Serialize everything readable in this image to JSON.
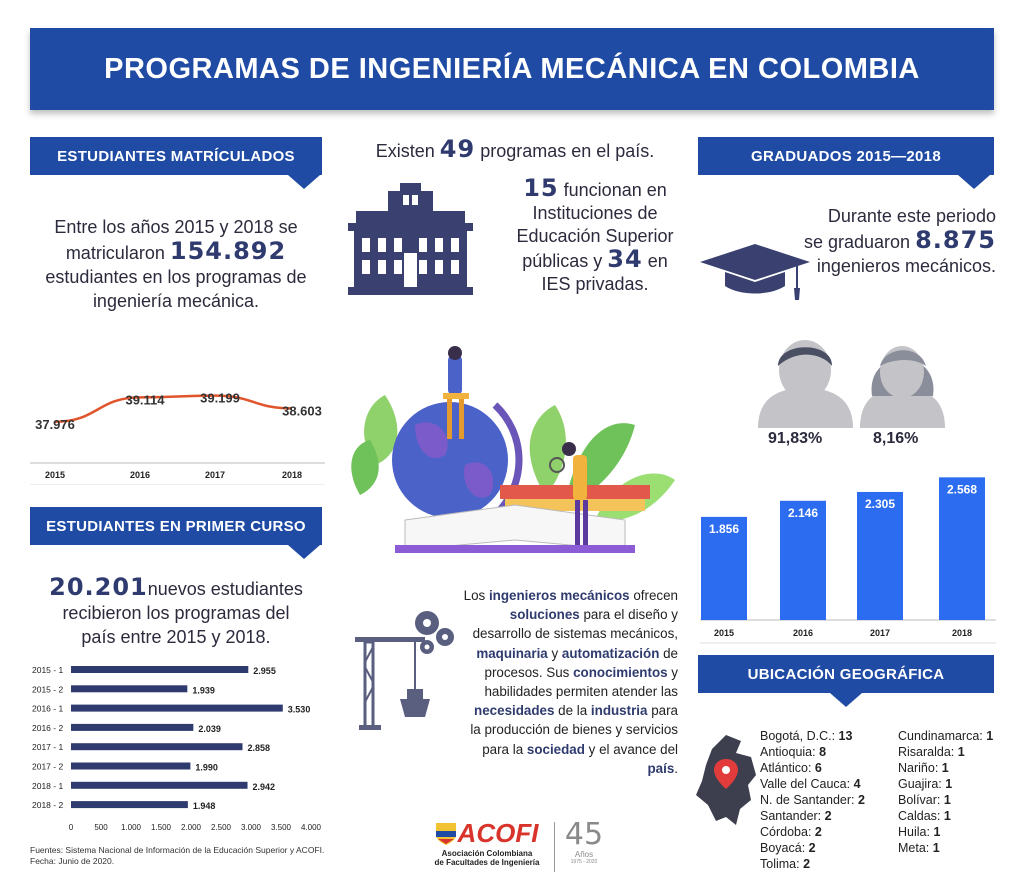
{
  "title": "PROGRAMAS DE INGENIERÍA MECÁNICA EN COLOMBIA",
  "matriculados": {
    "heading": "ESTUDIANTES MATRÍCULADOS",
    "text_a": "Entre los años 2015 y 2018 se",
    "text_b": "matricularon",
    "number": "154.892",
    "text_c": "estudiantes en los programas de",
    "text_d": "ingeniería mecánica.",
    "chart": {
      "years": [
        "2015",
        "2016",
        "2017",
        "2018"
      ],
      "labels": [
        "37.976",
        "39.114",
        "39.199",
        "38.603"
      ],
      "values": [
        37976,
        39114,
        39199,
        38603
      ],
      "line_color": "#e0552b"
    }
  },
  "programas": {
    "line1_a": "Existen",
    "line1_num": "49",
    "line1_b": "programas en el país.",
    "num_public": "15",
    "t1": "funcionan en",
    "t2": "Instituciones de",
    "t3": "Educación Superior",
    "t4": "públicas y",
    "num_private": "34",
    "t5": "en",
    "t6": "IES privadas."
  },
  "graduados": {
    "heading": "GRADUADOS 2015—2018",
    "text_a": "Durante este periodo",
    "text_b": "se graduaron",
    "number": "8.875",
    "text_c": "ingenieros mecánicos.",
    "pct_male": "91,83%",
    "pct_female": "8,16%",
    "chart": {
      "type": "bar",
      "categories": [
        "2015",
        "2016",
        "2017",
        "2018"
      ],
      "labels": [
        "1.856",
        "2.146",
        "2.305",
        "2.568"
      ],
      "values": [
        1856,
        2146,
        2305,
        2568
      ],
      "color": "#2c6cf0"
    }
  },
  "primer_curso": {
    "heading": "ESTUDIANTES EN PRIMER CURSO",
    "number": "20.201",
    "text_a": "nuevos estudiantes",
    "text_b": "recibieron los programas del",
    "text_c": "país entre 2015 y 2018.",
    "chart": {
      "type": "bar",
      "orientation": "horizontal",
      "categories": [
        "2015 - 1",
        "2015 - 2",
        "2016 - 1",
        "2016 - 2",
        "2017 - 1",
        "2017 - 2",
        "2018 - 1",
        "2018 - 2"
      ],
      "labels": [
        "2.955",
        "1.939",
        "3.530",
        "2.039",
        "2.858",
        "1.990",
        "2.942",
        "1.948"
      ],
      "values": [
        2955,
        1939,
        3530,
        2039,
        2858,
        1990,
        2942,
        1948
      ],
      "xticks": [
        "0",
        "500",
        "1.000",
        "1.500",
        "2.000",
        "2.500",
        "3.000",
        "3.500",
        "4.000"
      ],
      "xlim": [
        0,
        4000
      ]
    }
  },
  "descripcion": [
    {
      "t": "Los ",
      "b": false
    },
    {
      "t": "ingenieros mecánicos",
      "b": true
    },
    {
      "t": " ofrecen ",
      "b": false
    },
    {
      "t": "soluciones",
      "b": true
    },
    {
      "t": " para el diseño y desarrollo de sistemas mecánicos, ",
      "b": false
    },
    {
      "t": "maquinaria",
      "b": true
    },
    {
      "t": " y ",
      "b": false
    },
    {
      "t": "automatización",
      "b": true
    },
    {
      "t": " de procesos. Sus ",
      "b": false
    },
    {
      "t": "conocimientos",
      "b": true
    },
    {
      "t": " y habilidades permiten atender las ",
      "b": false
    },
    {
      "t": "necesidades",
      "b": true
    },
    {
      "t": " de la ",
      "b": false
    },
    {
      "t": "industria",
      "b": true
    },
    {
      "t": " para la producción de bienes y servicios para la ",
      "b": false
    },
    {
      "t": "sociedad",
      "b": true
    },
    {
      "t": " y el avance del ",
      "b": false
    },
    {
      "t": "país",
      "b": true
    },
    {
      "t": ".",
      "b": false
    }
  ],
  "ubicacion": {
    "heading": "UBICACIÓN GEOGRÁFICA",
    "col1": [
      {
        "name": "Bogotá, D.C.:",
        "n": "13"
      },
      {
        "name": "Antioquia:",
        "n": "8"
      },
      {
        "name": "Atlántico:",
        "n": "6"
      },
      {
        "name": "Valle del Cauca:",
        "n": "4"
      },
      {
        "name": "N. de Santander:",
        "n": "2"
      },
      {
        "name": "Santander:",
        "n": "2"
      },
      {
        "name": "Córdoba:",
        "n": "2"
      },
      {
        "name": "Boyacá:",
        "n": "2"
      },
      {
        "name": "Tolima:",
        "n": "2"
      }
    ],
    "col2": [
      {
        "name": "Cundinamarca:",
        "n": "1"
      },
      {
        "name": "Risaralda:",
        "n": "1"
      },
      {
        "name": "Nariño:",
        "n": "1"
      },
      {
        "name": "Guajira:",
        "n": "1"
      },
      {
        "name": "Bolívar:",
        "n": "1"
      },
      {
        "name": "Caldas:",
        "n": "1"
      },
      {
        "name": "Huila:",
        "n": "1"
      },
      {
        "name": "Meta:",
        "n": "1"
      }
    ]
  },
  "footer": {
    "fuentes": "Fuentes: Sistema Nacional de Información de la Educación Superior y ACOFI.",
    "fecha": "Fecha: Junio de 2020.",
    "logo_name": "ACOFI",
    "logo_sub1": "Asociación Colombiana",
    "logo_sub2": "de Facultades de Ingeniería",
    "anniv": "45",
    "anniv_sub": "Años",
    "anniv_years": "1975 - 2020"
  },
  "colors": {
    "brand": "#1f4ba5",
    "dark": "#2f3b6e",
    "bar": "#2c6cf0",
    "line": "#e0552b"
  }
}
